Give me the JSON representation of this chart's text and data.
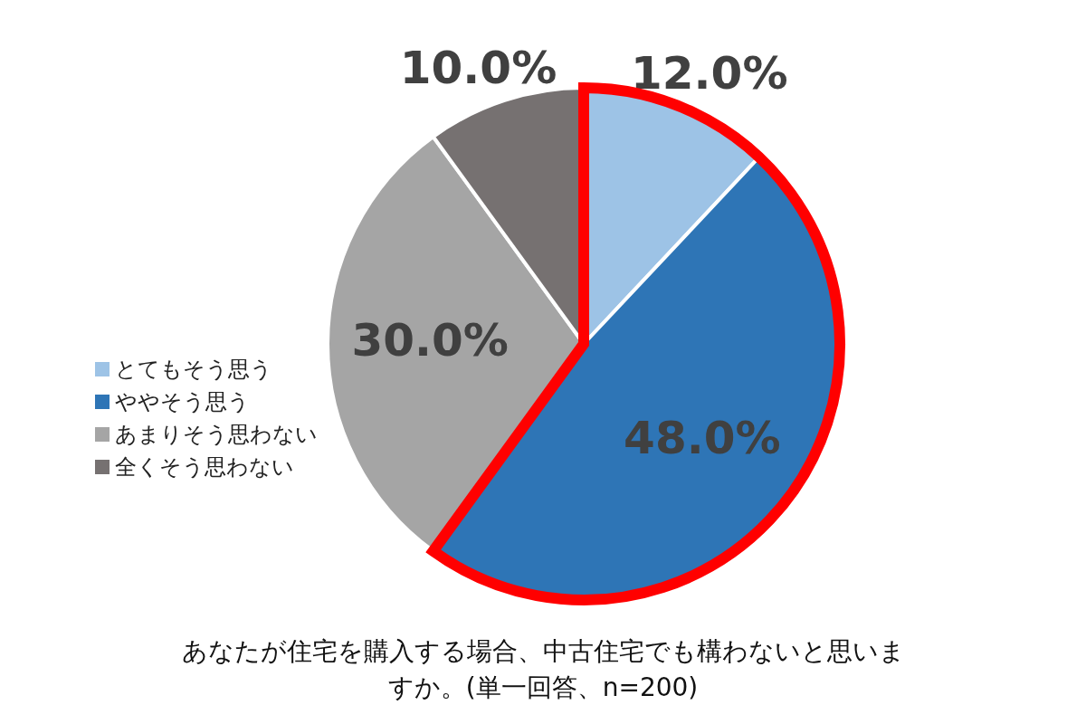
{
  "chart_data": {
    "type": "pie",
    "title": "あなたが住宅を購入する場合、中古住宅でも構わないと思いますか。(単一回答、n=200)",
    "categories": [
      "とてもそう思う",
      "ややそう思う",
      "あまりそう思わない",
      "全くそう思わない"
    ],
    "values": [
      12,
      48,
      30,
      10
    ],
    "colors": [
      "#9dc3e6",
      "#2e75b6",
      "#a5a5a5",
      "#767171"
    ],
    "value_labels": [
      "12.0%",
      "48.0%",
      "30.0%",
      "10.0%"
    ],
    "legend": "left"
  }
}
